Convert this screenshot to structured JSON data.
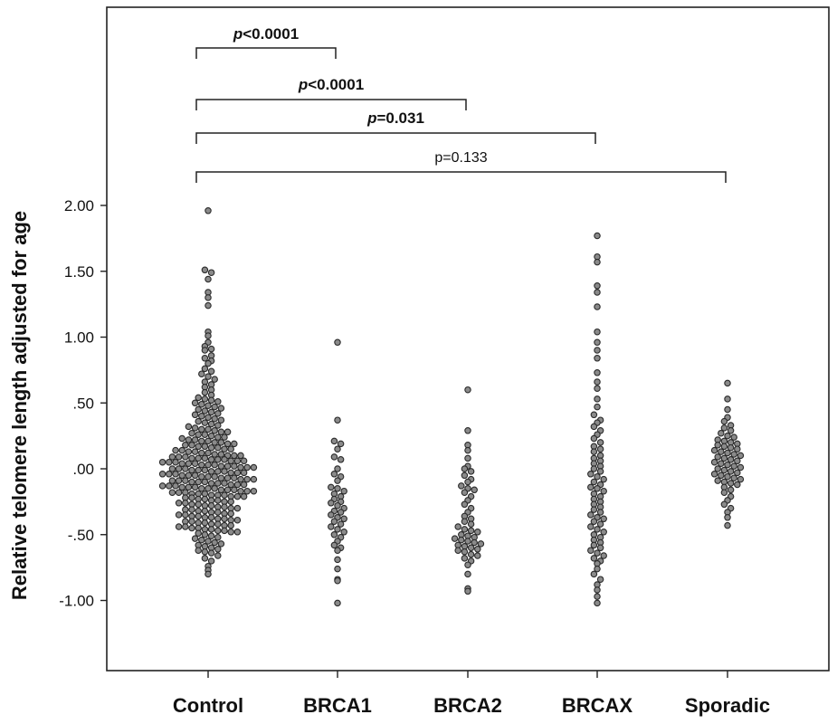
{
  "chart_data": {
    "type": "scatter",
    "subtype": "dot-plot",
    "ylabel": "Relative telomere length adjusted for age",
    "xlabel": "",
    "ylim": [
      -1.4,
      2.55
    ],
    "y_ticks": [
      "2.00",
      "1.50",
      "1.00",
      ".50",
      ".00",
      "-.50",
      "-1.00"
    ],
    "y_tick_values": [
      2.0,
      1.5,
      1.0,
      0.5,
      0.0,
      -0.5,
      -1.0
    ],
    "categories": [
      "Control",
      "BRCA1",
      "BRCA2",
      "BRCAX",
      "Sporadic"
    ],
    "marker": {
      "shape": "circle",
      "fill": "#8a8a8a",
      "stroke": "#2a2a2a"
    },
    "series": [
      {
        "values": [
          1.96,
          1.51,
          1.49,
          1.44,
          1.34,
          1.3,
          1.24,
          1.04,
          1.01,
          0.96,
          0.93,
          0.91,
          0.9,
          0.86,
          0.84,
          0.82,
          0.8,
          0.76,
          0.74,
          0.72,
          0.7,
          0.68,
          0.66,
          0.64,
          0.62,
          0.6,
          0.58,
          0.56,
          0.54,
          0.53,
          0.52,
          0.51,
          0.5,
          0.49,
          0.48,
          0.47,
          0.46,
          0.45,
          0.44,
          0.43,
          0.42,
          0.41,
          0.4,
          0.39,
          0.38,
          0.37,
          0.36,
          0.35,
          0.34,
          0.33,
          0.32,
          0.31,
          0.3,
          0.3,
          0.29,
          0.28,
          0.28,
          0.27,
          0.26,
          0.26,
          0.25,
          0.24,
          0.24,
          0.23,
          0.22,
          0.22,
          0.21,
          0.21,
          0.2,
          0.2,
          0.19,
          0.19,
          0.18,
          0.18,
          0.17,
          0.17,
          0.16,
          0.16,
          0.15,
          0.15,
          0.14,
          0.14,
          0.13,
          0.13,
          0.12,
          0.12,
          0.11,
          0.11,
          0.1,
          0.1,
          0.1,
          0.09,
          0.09,
          0.09,
          0.08,
          0.08,
          0.08,
          0.07,
          0.07,
          0.07,
          0.06,
          0.06,
          0.06,
          0.05,
          0.05,
          0.05,
          0.04,
          0.04,
          0.04,
          0.03,
          0.03,
          0.03,
          0.02,
          0.02,
          0.02,
          0.01,
          0.01,
          0.01,
          0.0,
          0.0,
          0.0,
          -0.01,
          -0.01,
          -0.01,
          -0.02,
          -0.02,
          -0.02,
          -0.03,
          -0.03,
          -0.03,
          -0.04,
          -0.04,
          -0.04,
          -0.05,
          -0.05,
          -0.05,
          -0.06,
          -0.06,
          -0.06,
          -0.07,
          -0.07,
          -0.07,
          -0.08,
          -0.08,
          -0.08,
          -0.09,
          -0.09,
          -0.09,
          -0.1,
          -0.1,
          -0.1,
          -0.11,
          -0.11,
          -0.11,
          -0.12,
          -0.12,
          -0.12,
          -0.13,
          -0.13,
          -0.13,
          -0.14,
          -0.14,
          -0.14,
          -0.15,
          -0.15,
          -0.15,
          -0.16,
          -0.16,
          -0.16,
          -0.17,
          -0.17,
          -0.17,
          -0.18,
          -0.18,
          -0.18,
          -0.19,
          -0.19,
          -0.19,
          -0.2,
          -0.2,
          -0.2,
          -0.21,
          -0.21,
          -0.21,
          -0.22,
          -0.22,
          -0.23,
          -0.23,
          -0.24,
          -0.24,
          -0.25,
          -0.25,
          -0.26,
          -0.26,
          -0.27,
          -0.27,
          -0.28,
          -0.28,
          -0.29,
          -0.29,
          -0.3,
          -0.3,
          -0.31,
          -0.31,
          -0.32,
          -0.32,
          -0.33,
          -0.33,
          -0.34,
          -0.34,
          -0.35,
          -0.35,
          -0.36,
          -0.36,
          -0.37,
          -0.37,
          -0.38,
          -0.38,
          -0.39,
          -0.39,
          -0.4,
          -0.4,
          -0.41,
          -0.41,
          -0.42,
          -0.42,
          -0.43,
          -0.43,
          -0.44,
          -0.44,
          -0.45,
          -0.45,
          -0.46,
          -0.46,
          -0.47,
          -0.47,
          -0.48,
          -0.48,
          -0.49,
          -0.5,
          -0.51,
          -0.52,
          -0.53,
          -0.54,
          -0.55,
          -0.56,
          -0.57,
          -0.58,
          -0.59,
          -0.6,
          -0.61,
          -0.62,
          -0.63,
          -0.64,
          -0.66,
          -0.68,
          -0.7,
          -0.74,
          -0.77,
          -0.8
        ]
      },
      {
        "values": [
          0.96,
          0.37,
          0.21,
          0.19,
          0.15,
          0.09,
          0.07,
          0.0,
          -0.04,
          -0.06,
          -0.09,
          -0.14,
          -0.15,
          -0.17,
          -0.19,
          -0.21,
          -0.23,
          -0.25,
          -0.26,
          -0.28,
          -0.3,
          -0.32,
          -0.33,
          -0.35,
          -0.37,
          -0.38,
          -0.4,
          -0.42,
          -0.44,
          -0.46,
          -0.48,
          -0.5,
          -0.52,
          -0.55,
          -0.58,
          -0.6,
          -0.62,
          -0.69,
          -0.76,
          -0.84,
          -0.85,
          -1.02
        ]
      },
      {
        "values": [
          0.6,
          0.29,
          0.18,
          0.14,
          0.08,
          0.02,
          0.0,
          -0.02,
          -0.05,
          -0.08,
          -0.1,
          -0.13,
          -0.15,
          -0.16,
          -0.18,
          -0.21,
          -0.24,
          -0.27,
          -0.3,
          -0.33,
          -0.36,
          -0.38,
          -0.4,
          -0.42,
          -0.44,
          -0.46,
          -0.47,
          -0.48,
          -0.5,
          -0.51,
          -0.52,
          -0.53,
          -0.54,
          -0.55,
          -0.56,
          -0.57,
          -0.58,
          -0.59,
          -0.6,
          -0.61,
          -0.62,
          -0.63,
          -0.65,
          -0.66,
          -0.68,
          -0.7,
          -0.73,
          -0.8,
          -0.91,
          -0.93
        ]
      },
      {
        "values": [
          1.77,
          1.61,
          1.57,
          1.39,
          1.34,
          1.23,
          1.04,
          0.96,
          0.9,
          0.84,
          0.73,
          0.66,
          0.61,
          0.53,
          0.47,
          0.41,
          0.37,
          0.35,
          0.32,
          0.29,
          0.26,
          0.23,
          0.2,
          0.17,
          0.15,
          0.13,
          0.1,
          0.08,
          0.06,
          0.04,
          0.02,
          0.0,
          -0.02,
          -0.04,
          -0.06,
          -0.08,
          -0.1,
          -0.12,
          -0.14,
          -0.15,
          -0.17,
          -0.19,
          -0.21,
          -0.23,
          -0.25,
          -0.27,
          -0.29,
          -0.31,
          -0.33,
          -0.35,
          -0.37,
          -0.38,
          -0.4,
          -0.42,
          -0.44,
          -0.46,
          -0.48,
          -0.5,
          -0.52,
          -0.54,
          -0.56,
          -0.58,
          -0.6,
          -0.62,
          -0.64,
          -0.66,
          -0.68,
          -0.7,
          -0.72,
          -0.76,
          -0.8,
          -0.84,
          -0.88,
          -0.92,
          -0.97,
          -1.02
        ]
      },
      {
        "values": [
          0.65,
          0.53,
          0.45,
          0.39,
          0.36,
          0.33,
          0.31,
          0.29,
          0.27,
          0.25,
          0.24,
          0.22,
          0.21,
          0.2,
          0.19,
          0.18,
          0.17,
          0.16,
          0.15,
          0.14,
          0.13,
          0.12,
          0.11,
          0.1,
          0.09,
          0.08,
          0.07,
          0.06,
          0.05,
          0.04,
          0.03,
          0.02,
          0.01,
          0.0,
          -0.01,
          -0.02,
          -0.03,
          -0.04,
          -0.05,
          -0.06,
          -0.07,
          -0.08,
          -0.09,
          -0.1,
          -0.11,
          -0.12,
          -0.14,
          -0.16,
          -0.18,
          -0.21,
          -0.24,
          -0.27,
          -0.3,
          -0.33,
          -0.37,
          -0.43
        ]
      }
    ],
    "annotations": [
      {
        "text_italic": "p",
        "text_rest": "<0.0001",
        "from": "Control",
        "to": "BRCA1",
        "bold": true
      },
      {
        "text_italic": "p",
        "text_rest": "<0.0001",
        "from": "Control",
        "to": "BRCA2",
        "bold": true
      },
      {
        "text_italic": "p",
        "text_rest": "=0.031",
        "from": "Control",
        "to": "BRCAX",
        "bold": true
      },
      {
        "text_italic": "",
        "text_rest": "p=0.133",
        "from": "Control",
        "to": "Sporadic",
        "bold": false
      }
    ],
    "grid": false,
    "legend": "none"
  }
}
